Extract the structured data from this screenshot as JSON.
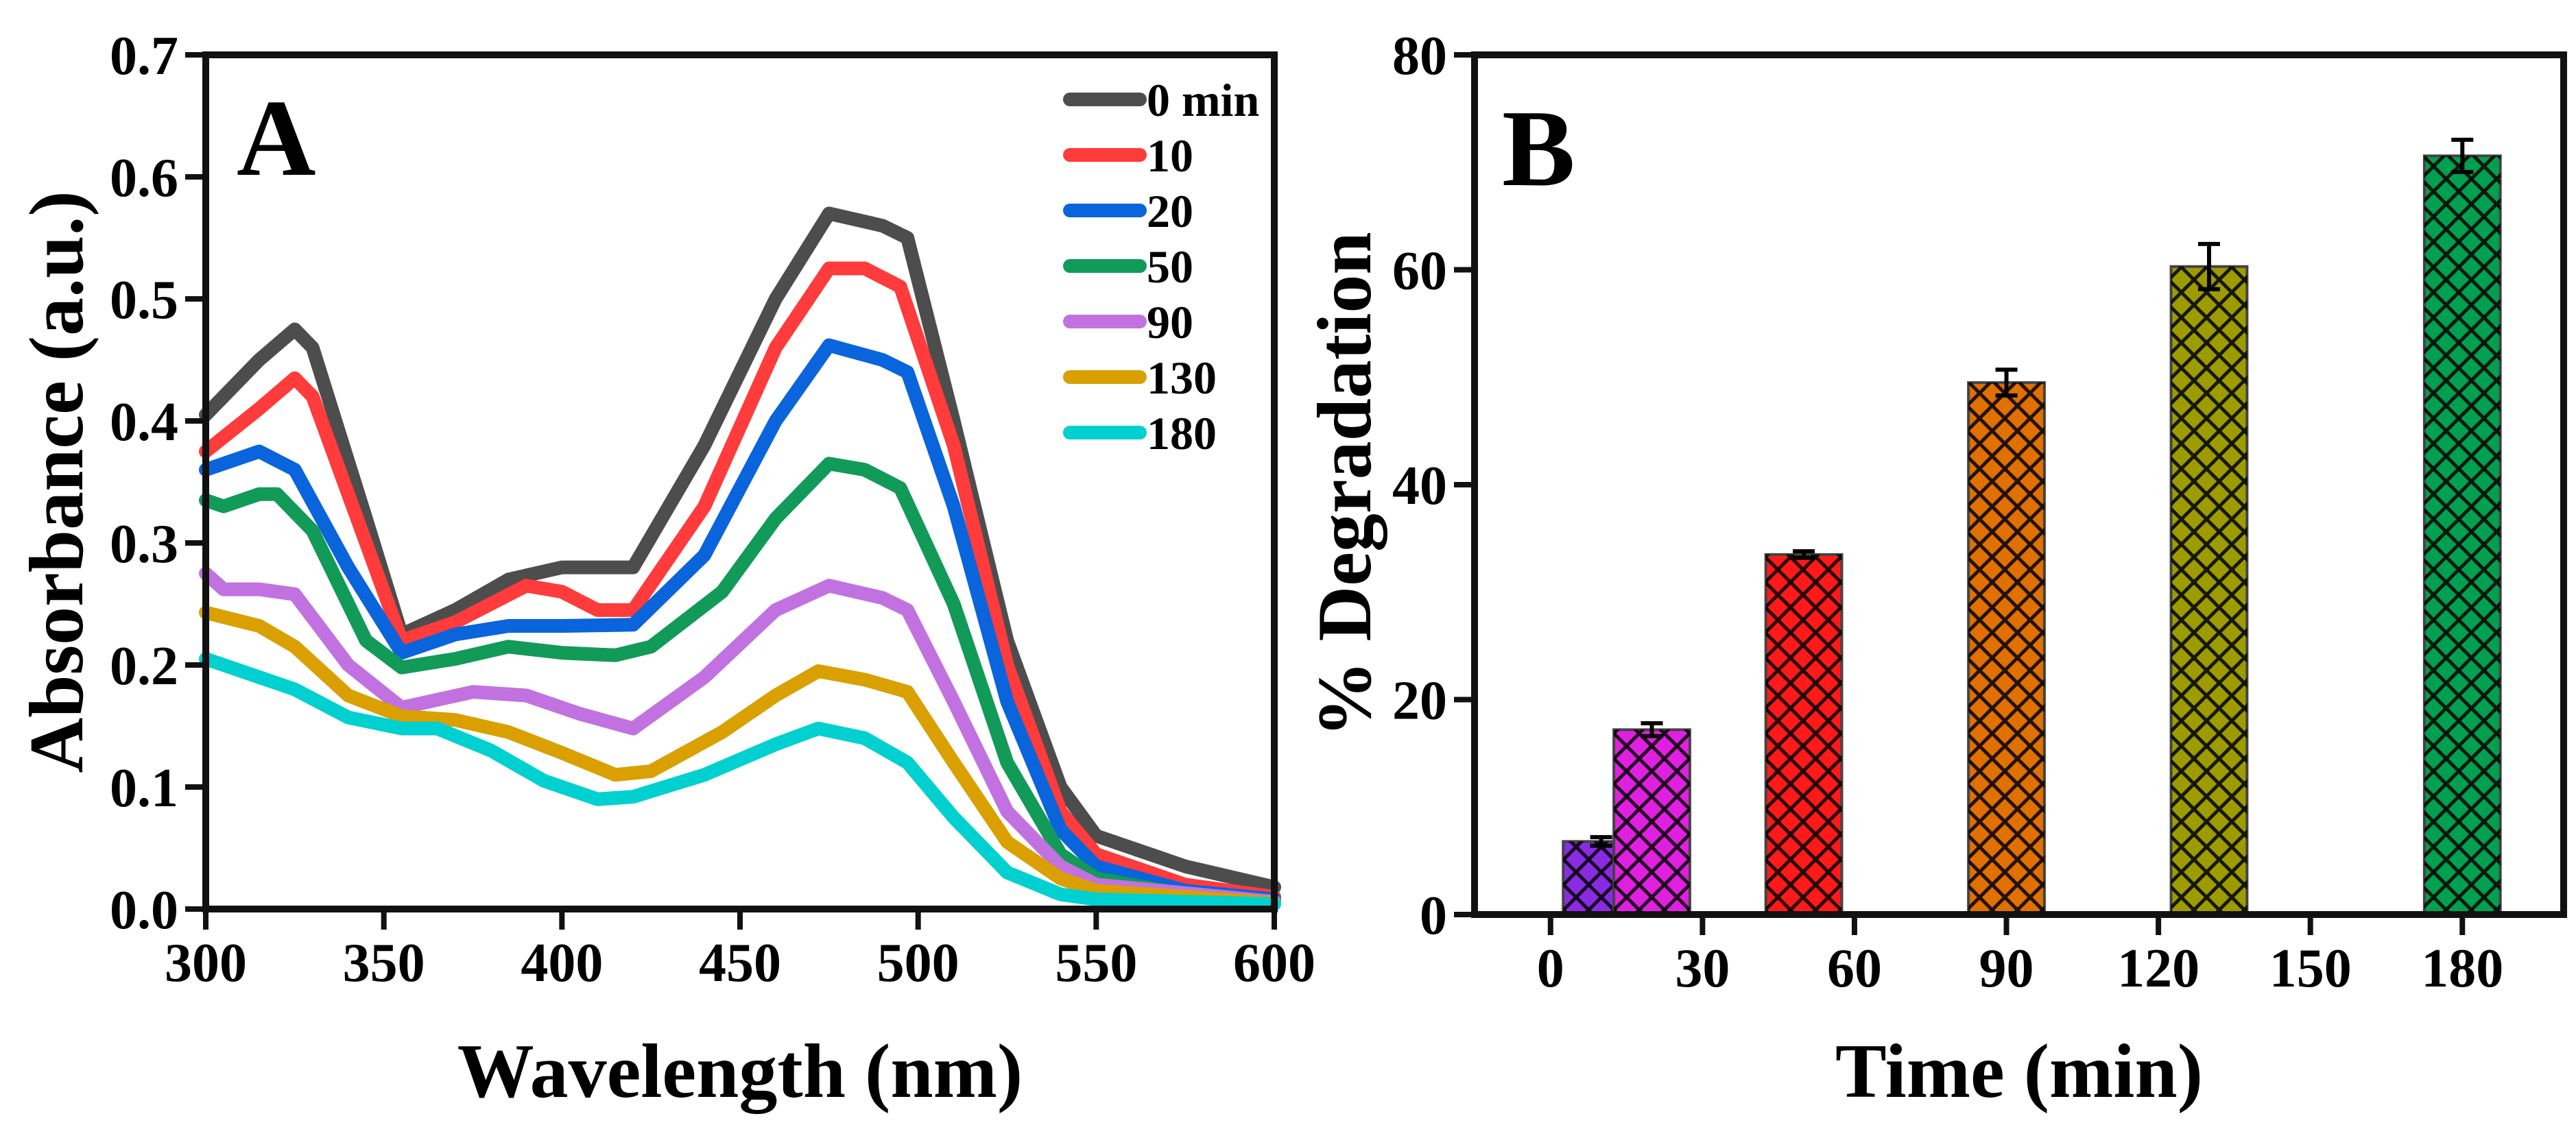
{
  "chart_data": [
    {
      "type": "line",
      "panel_label": "A",
      "xlabel": "Wavelength (nm)",
      "ylabel": "Absorbance (a.u.)",
      "xlim": [
        300,
        600
      ],
      "ylim": [
        0,
        0.7
      ],
      "xticks": [
        "300",
        "350",
        "400",
        "450",
        "500",
        "550",
        "600"
      ],
      "yticks": [
        "0.0",
        "0.1",
        "0.2",
        "0.3",
        "0.4",
        "0.5",
        "0.6",
        "0.7"
      ],
      "legend_position": "top-right",
      "series": [
        {
          "name": "0 min",
          "color": "#4d4d4d",
          "x": [
            300,
            315,
            325,
            330,
            345,
            355,
            370,
            385,
            400,
            420,
            440,
            460,
            475,
            490,
            497,
            510,
            525,
            540,
            550,
            575,
            600
          ],
          "y": [
            0.405,
            0.45,
            0.475,
            0.46,
            0.32,
            0.225,
            0.245,
            0.27,
            0.28,
            0.28,
            0.38,
            0.5,
            0.57,
            0.56,
            0.55,
            0.4,
            0.22,
            0.1,
            0.06,
            0.035,
            0.018
          ]
        },
        {
          "name": "10",
          "color": "#ff3b3b",
          "x": [
            300,
            315,
            325,
            330,
            345,
            355,
            370,
            390,
            400,
            410,
            420,
            440,
            460,
            475,
            485,
            495,
            510,
            525,
            540,
            550,
            575,
            600
          ],
          "y": [
            0.375,
            0.41,
            0.435,
            0.42,
            0.3,
            0.22,
            0.235,
            0.265,
            0.26,
            0.245,
            0.245,
            0.33,
            0.46,
            0.525,
            0.525,
            0.51,
            0.38,
            0.2,
            0.08,
            0.045,
            0.02,
            0.01
          ]
        },
        {
          "name": "20",
          "color": "#0a64dc",
          "x": [
            300,
            305,
            315,
            325,
            340,
            355,
            370,
            385,
            400,
            420,
            440,
            460,
            475,
            490,
            497,
            510,
            525,
            540,
            550,
            575,
            600
          ],
          "y": [
            0.36,
            0.365,
            0.375,
            0.36,
            0.28,
            0.21,
            0.225,
            0.232,
            0.232,
            0.233,
            0.29,
            0.4,
            0.462,
            0.45,
            0.44,
            0.33,
            0.17,
            0.065,
            0.035,
            0.015,
            0.008
          ]
        },
        {
          "name": "50",
          "color": "#129a58",
          "x": [
            300,
            305,
            315,
            320,
            330,
            345,
            355,
            370,
            385,
            400,
            415,
            425,
            445,
            460,
            475,
            485,
            495,
            510,
            525,
            540,
            550,
            575,
            600
          ],
          "y": [
            0.335,
            0.33,
            0.34,
            0.34,
            0.31,
            0.22,
            0.198,
            0.205,
            0.215,
            0.21,
            0.208,
            0.215,
            0.26,
            0.32,
            0.365,
            0.36,
            0.345,
            0.25,
            0.12,
            0.045,
            0.025,
            0.012,
            0.006
          ]
        },
        {
          "name": "90",
          "color": "#c271e0",
          "x": [
            300,
            305,
            315,
            325,
            340,
            355,
            375,
            390,
            405,
            420,
            440,
            460,
            475,
            490,
            497,
            510,
            525,
            540,
            550,
            600
          ],
          "y": [
            0.275,
            0.262,
            0.262,
            0.258,
            0.2,
            0.165,
            0.178,
            0.175,
            0.16,
            0.148,
            0.19,
            0.245,
            0.265,
            0.255,
            0.245,
            0.17,
            0.08,
            0.035,
            0.02,
            0.006
          ]
        },
        {
          "name": "130",
          "color": "#d9a000",
          "x": [
            300,
            315,
            325,
            340,
            355,
            370,
            385,
            400,
            415,
            425,
            445,
            460,
            472,
            485,
            497,
            510,
            525,
            540,
            550,
            600
          ],
          "y": [
            0.243,
            0.232,
            0.215,
            0.175,
            0.158,
            0.155,
            0.145,
            0.128,
            0.11,
            0.113,
            0.145,
            0.175,
            0.195,
            0.188,
            0.178,
            0.12,
            0.055,
            0.025,
            0.015,
            0.005
          ]
        },
        {
          "name": "180",
          "color": "#00d0d0",
          "x": [
            300,
            315,
            325,
            340,
            355,
            365,
            380,
            395,
            410,
            420,
            440,
            460,
            472,
            485,
            497,
            510,
            525,
            540,
            550,
            600
          ],
          "y": [
            0.205,
            0.19,
            0.18,
            0.157,
            0.148,
            0.148,
            0.13,
            0.105,
            0.09,
            0.092,
            0.11,
            0.135,
            0.148,
            0.14,
            0.12,
            0.075,
            0.03,
            0.012,
            0.008,
            0.004
          ]
        }
      ]
    },
    {
      "type": "bar",
      "panel_label": "B",
      "xlabel": "Time (min)",
      "ylabel": "% Degradation",
      "xlim": [
        -15,
        200
      ],
      "ylim": [
        0,
        80
      ],
      "xticks": [
        "0",
        "30",
        "60",
        "90",
        "120",
        "150",
        "180"
      ],
      "yticks": [
        "0",
        "20",
        "40",
        "60",
        "80"
      ],
      "bar_width_min": 15,
      "bars": [
        {
          "x": 10,
          "value": 6.8,
          "error": 0.4,
          "color": "#8a2be2"
        },
        {
          "x": 20,
          "value": 17.2,
          "error": 0.6,
          "color": "#e020e0"
        },
        {
          "x": 50,
          "value": 33.5,
          "error": 0.3,
          "color": "#ff1a1a"
        },
        {
          "x": 90,
          "value": 49.5,
          "error": 1.2,
          "color": "#e07000"
        },
        {
          "x": 130,
          "value": 60.3,
          "error": 2.1,
          "color": "#9c9c00"
        },
        {
          "x": 180,
          "value": 70.6,
          "error": 1.5,
          "color": "#00a050"
        }
      ]
    }
  ]
}
